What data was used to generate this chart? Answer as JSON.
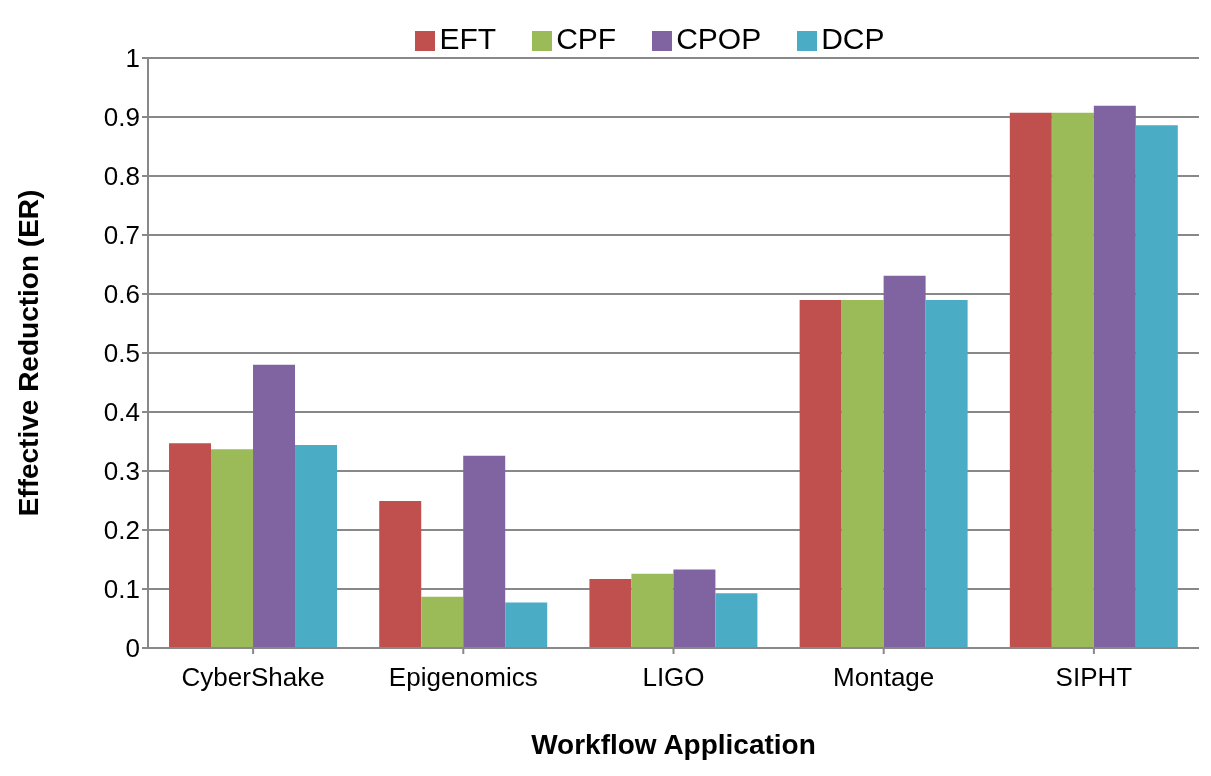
{
  "chart_data": {
    "type": "bar",
    "xlabel": "Workflow Application",
    "ylabel": "Effective Reduction (ER)",
    "categories": [
      "CyberShake",
      "Epigenomics",
      "LIGO",
      "Montage",
      "SIPHT"
    ],
    "series": [
      {
        "name": "EFT",
        "color": "#c0504d",
        "values": [
          0.347,
          0.249,
          0.117,
          0.59,
          0.907
        ]
      },
      {
        "name": "CPF",
        "color": "#9bbb59",
        "values": [
          0.337,
          0.087,
          0.126,
          0.59,
          0.907
        ]
      },
      {
        "name": "CPOP",
        "color": "#8064a2",
        "values": [
          0.48,
          0.326,
          0.133,
          0.631,
          0.919
        ]
      },
      {
        "name": "DCP",
        "color": "#4bacc6",
        "values": [
          0.344,
          0.077,
          0.093,
          0.59,
          0.886
        ]
      }
    ],
    "ylim": [
      0,
      1
    ],
    "yticks": [
      0,
      0.1,
      0.2,
      0.3,
      0.4,
      0.5,
      0.6,
      0.7,
      0.8,
      0.9,
      1
    ],
    "grid": "y",
    "legend": "top"
  }
}
